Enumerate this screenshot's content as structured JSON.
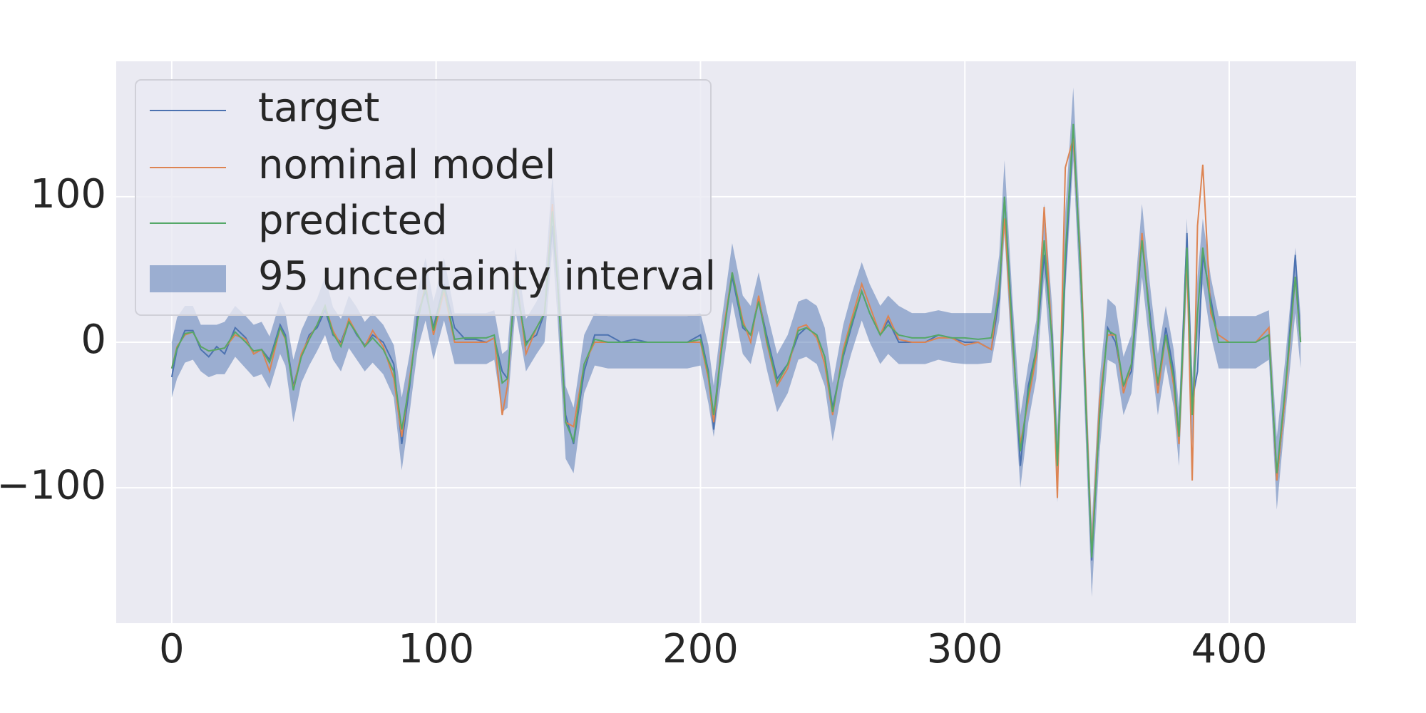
{
  "chart_data": {
    "type": "line",
    "x": [
      0,
      2,
      5,
      8,
      11,
      14,
      17,
      20,
      24,
      28,
      31,
      34,
      37,
      41,
      43,
      46,
      49,
      52,
      55,
      58,
      61,
      64,
      67,
      70,
      73,
      76,
      80,
      84,
      87,
      90,
      93,
      96,
      99,
      103,
      107,
      111,
      115,
      119,
      122,
      125,
      127,
      130,
      134,
      138,
      141,
      144,
      146,
      149,
      152,
      156,
      160,
      165,
      170,
      175,
      180,
      185,
      190,
      195,
      200,
      203,
      205,
      208,
      212,
      216,
      219,
      222,
      225,
      229,
      233,
      237,
      240,
      244,
      247,
      250,
      254,
      257,
      261,
      264,
      268,
      271,
      275,
      280,
      285,
      290,
      295,
      300,
      305,
      310,
      313,
      315,
      318,
      321,
      324,
      327,
      330,
      333,
      335,
      338,
      341,
      344,
      348,
      351,
      354,
      357,
      360,
      363,
      367,
      370,
      373,
      376,
      379,
      381,
      384,
      386,
      388,
      390,
      393,
      396,
      400,
      405,
      410,
      415,
      418,
      421,
      425,
      427
    ],
    "series": [
      {
        "name": "target",
        "color": "#4c72b0",
        "values": [
          -24,
          -5,
          8,
          8,
          -5,
          -10,
          -3,
          -8,
          10,
          3,
          -8,
          -5,
          -12,
          12,
          5,
          -30,
          -10,
          5,
          10,
          22,
          5,
          0,
          15,
          5,
          -2,
          5,
          0,
          -15,
          -70,
          -30,
          20,
          35,
          10,
          40,
          10,
          2,
          2,
          0,
          3,
          -20,
          -25,
          40,
          0,
          5,
          20,
          80,
          40,
          -50,
          -70,
          -20,
          5,
          5,
          0,
          2,
          0,
          0,
          0,
          0,
          5,
          -20,
          -60,
          0,
          45,
          10,
          5,
          30,
          5,
          -25,
          -15,
          5,
          10,
          5,
          -10,
          -45,
          -10,
          10,
          35,
          20,
          5,
          15,
          0,
          0,
          0,
          5,
          3,
          0,
          0,
          -5,
          30,
          100,
          10,
          -85,
          -30,
          -5,
          60,
          5,
          -85,
          50,
          145,
          40,
          -150,
          -50,
          10,
          0,
          -30,
          -20,
          70,
          20,
          -30,
          10,
          -20,
          -65,
          75,
          -40,
          -20,
          60,
          30,
          0,
          0,
          0,
          0,
          5,
          -95,
          -40,
          60,
          0
        ]
      },
      {
        "name": "nominal model",
        "color": "#dd8452",
        "values": [
          -18,
          -3,
          5,
          7,
          -3,
          -6,
          -5,
          -4,
          5,
          2,
          -8,
          -5,
          -20,
          10,
          2,
          -32,
          -8,
          3,
          12,
          25,
          8,
          -2,
          16,
          6,
          -3,
          8,
          -3,
          -25,
          -65,
          -25,
          15,
          40,
          5,
          35,
          0,
          0,
          0,
          0,
          3,
          -50,
          -30,
          50,
          -8,
          10,
          20,
          95,
          40,
          -55,
          -58,
          -15,
          0,
          0,
          0,
          0,
          0,
          0,
          0,
          0,
          0,
          -25,
          -55,
          0,
          48,
          15,
          0,
          32,
          0,
          -30,
          -18,
          10,
          12,
          3,
          -15,
          -50,
          -5,
          15,
          40,
          25,
          5,
          18,
          2,
          0,
          0,
          3,
          3,
          -2,
          0,
          -5,
          40,
          85,
          0,
          -70,
          -40,
          -10,
          93,
          0,
          -107,
          120,
          140,
          50,
          -145,
          -40,
          5,
          5,
          -35,
          -15,
          75,
          15,
          -35,
          5,
          -30,
          -70,
          60,
          -95,
          80,
          122,
          20,
          5,
          0,
          0,
          0,
          10,
          -95,
          -40,
          45,
          0
        ]
      },
      {
        "name": "predicted",
        "color": "#55a868",
        "values": [
          -18,
          -4,
          6,
          7,
          -3,
          -6,
          -5,
          -4,
          7,
          0,
          -6,
          -5,
          -14,
          10,
          3,
          -33,
          -10,
          2,
          12,
          25,
          6,
          -3,
          14,
          6,
          -3,
          3,
          -5,
          -20,
          -60,
          -28,
          15,
          38,
          8,
          38,
          2,
          3,
          3,
          3,
          5,
          -28,
          -25,
          45,
          -2,
          10,
          20,
          90,
          40,
          -55,
          -68,
          -15,
          2,
          0,
          0,
          0,
          0,
          0,
          0,
          0,
          2,
          -22,
          -50,
          -5,
          48,
          12,
          5,
          28,
          2,
          -28,
          -15,
          8,
          10,
          5,
          -10,
          -48,
          -8,
          12,
          35,
          20,
          5,
          12,
          5,
          3,
          3,
          5,
          3,
          3,
          2,
          3,
          35,
          100,
          5,
          -75,
          -35,
          -5,
          70,
          0,
          -85,
          60,
          150,
          40,
          -148,
          -50,
          8,
          5,
          -30,
          -15,
          70,
          15,
          -28,
          5,
          -25,
          -65,
          65,
          -50,
          20,
          65,
          25,
          0,
          0,
          0,
          0,
          5,
          -90,
          -35,
          45,
          0
        ]
      }
    ],
    "band": {
      "name": "95 uncertainty interval",
      "color": "#4c72b0",
      "lower": [
        -38,
        -25,
        -14,
        -12,
        -20,
        -24,
        -22,
        -22,
        -10,
        -18,
        -24,
        -22,
        -32,
        -8,
        -16,
        -55,
        -28,
        -16,
        -6,
        5,
        -12,
        -20,
        -4,
        -12,
        -20,
        -14,
        -22,
        -38,
        -88,
        -48,
        -5,
        15,
        -12,
        15,
        -15,
        -15,
        -15,
        -15,
        -12,
        -48,
        -45,
        22,
        -20,
        -8,
        0,
        65,
        15,
        -80,
        -90,
        -35,
        -16,
        -18,
        -18,
        -18,
        -18,
        -18,
        -18,
        -18,
        -16,
        -42,
        -65,
        -25,
        28,
        -8,
        -15,
        8,
        -18,
        -48,
        -35,
        -12,
        -10,
        -15,
        -30,
        -68,
        -28,
        -8,
        15,
        0,
        -15,
        -8,
        -15,
        -15,
        -15,
        -12,
        -14,
        -15,
        -15,
        -14,
        15,
        75,
        -20,
        -100,
        -55,
        -25,
        45,
        -25,
        -110,
        35,
        125,
        15,
        -175,
        -75,
        -12,
        -15,
        -50,
        -35,
        45,
        -5,
        -50,
        -15,
        -45,
        -85,
        40,
        -70,
        0,
        40,
        5,
        -18,
        -18,
        -18,
        -18,
        -12,
        -115,
        -55,
        20,
        -18
      ],
      "upper": [
        0,
        17,
        25,
        25,
        12,
        12,
        12,
        14,
        25,
        18,
        12,
        14,
        4,
        28,
        20,
        -12,
        8,
        20,
        30,
        45,
        24,
        16,
        32,
        24,
        14,
        20,
        12,
        -2,
        -38,
        -8,
        35,
        58,
        28,
        58,
        20,
        20,
        20,
        20,
        22,
        -8,
        -5,
        65,
        16,
        28,
        40,
        115,
        65,
        -30,
        -45,
        5,
        20,
        18,
        18,
        18,
        18,
        18,
        18,
        18,
        20,
        -2,
        -30,
        15,
        68,
        32,
        25,
        48,
        22,
        -8,
        5,
        28,
        30,
        25,
        10,
        -28,
        12,
        32,
        55,
        40,
        25,
        32,
        25,
        20,
        20,
        22,
        20,
        20,
        20,
        20,
        60,
        125,
        30,
        -50,
        -15,
        15,
        95,
        25,
        -60,
        90,
        175,
        65,
        -125,
        -25,
        30,
        25,
        -10,
        5,
        95,
        40,
        -8,
        25,
        -5,
        -45,
        85,
        -25,
        45,
        85,
        45,
        18,
        18,
        18,
        18,
        22,
        -65,
        -15,
        65,
        18
      ]
    },
    "xlim": [
      -21,
      448
    ],
    "ylim": [
      -193,
      193
    ],
    "xticks": [
      0,
      100,
      200,
      300,
      400
    ],
    "yticks": [
      {
        "value": -100,
        "label": "−100"
      },
      0,
      100
    ],
    "grid": true,
    "legend": "upper left"
  }
}
